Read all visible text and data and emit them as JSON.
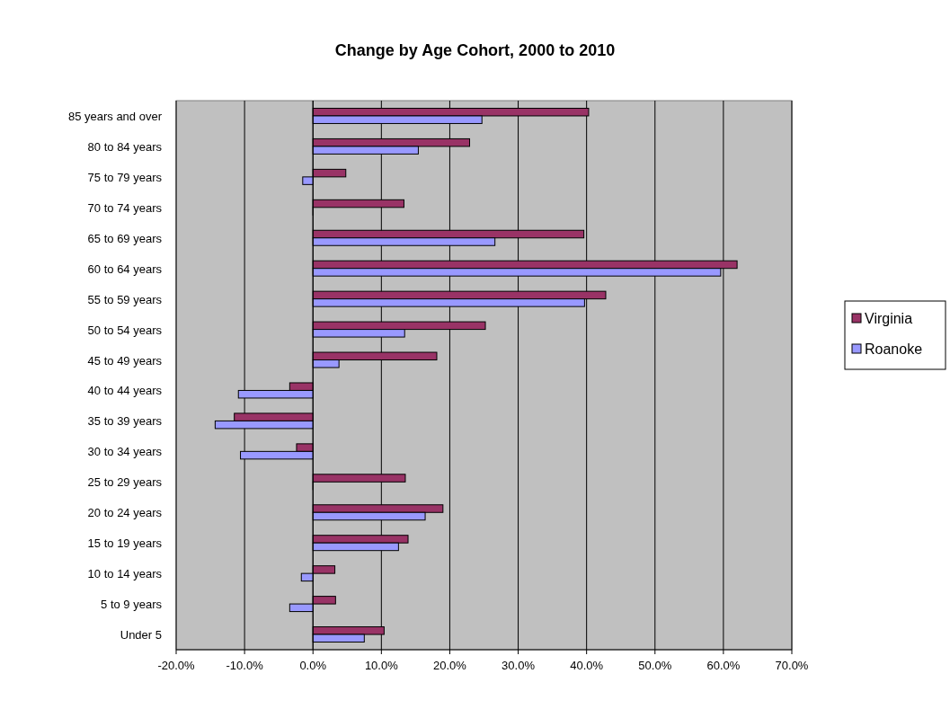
{
  "chart_data": {
    "type": "bar",
    "orientation": "horizontal",
    "title": "Change by Age Cohort, 2000 to 2010",
    "categories": [
      "85 years and over",
      "80 to 84 years",
      "75 to 79 years",
      "70 to 74 years",
      "65 to 69 years",
      "60 to 64 years",
      "55 to 59 years",
      "50 to 54 years",
      "45 to 49 years",
      "40 to 44 years",
      "35 to 39 years",
      "30 to 34 years",
      "25 to 29 years",
      "20 to 24 years",
      "15 to 19 years",
      "10 to 14 years",
      "5 to 9 years",
      "Under 5"
    ],
    "series": [
      {
        "name": "Virginia",
        "color": "#993366",
        "values": [
          40.3,
          22.9,
          4.8,
          13.3,
          39.6,
          62.0,
          42.8,
          25.2,
          18.1,
          -3.4,
          -11.5,
          -2.4,
          13.5,
          19.0,
          13.9,
          3.2,
          3.3,
          10.4
        ]
      },
      {
        "name": "Roanoke",
        "color": "#9999ff",
        "values": [
          24.7,
          15.4,
          -1.5,
          0,
          26.6,
          59.6,
          39.7,
          13.4,
          3.8,
          -10.9,
          -14.3,
          -10.6,
          0,
          16.4,
          12.5,
          -1.7,
          -3.4,
          7.5
        ]
      }
    ],
    "xlim": [
      -20,
      70
    ],
    "xticks": [
      {
        "value": -20,
        "label": "-20.0%"
      },
      {
        "value": -10,
        "label": "-10.0%"
      },
      {
        "value": 0,
        "label": "0.0%"
      },
      {
        "value": 10,
        "label": "10.0%"
      },
      {
        "value": 20,
        "label": "20.0%"
      },
      {
        "value": 30,
        "label": "30.0%"
      },
      {
        "value": 40,
        "label": "40.0%"
      },
      {
        "value": 50,
        "label": "50.0%"
      },
      {
        "value": 60,
        "label": "60.0%"
      },
      {
        "value": 70,
        "label": "70.0%"
      }
    ],
    "grid": "x",
    "legend": "right"
  }
}
